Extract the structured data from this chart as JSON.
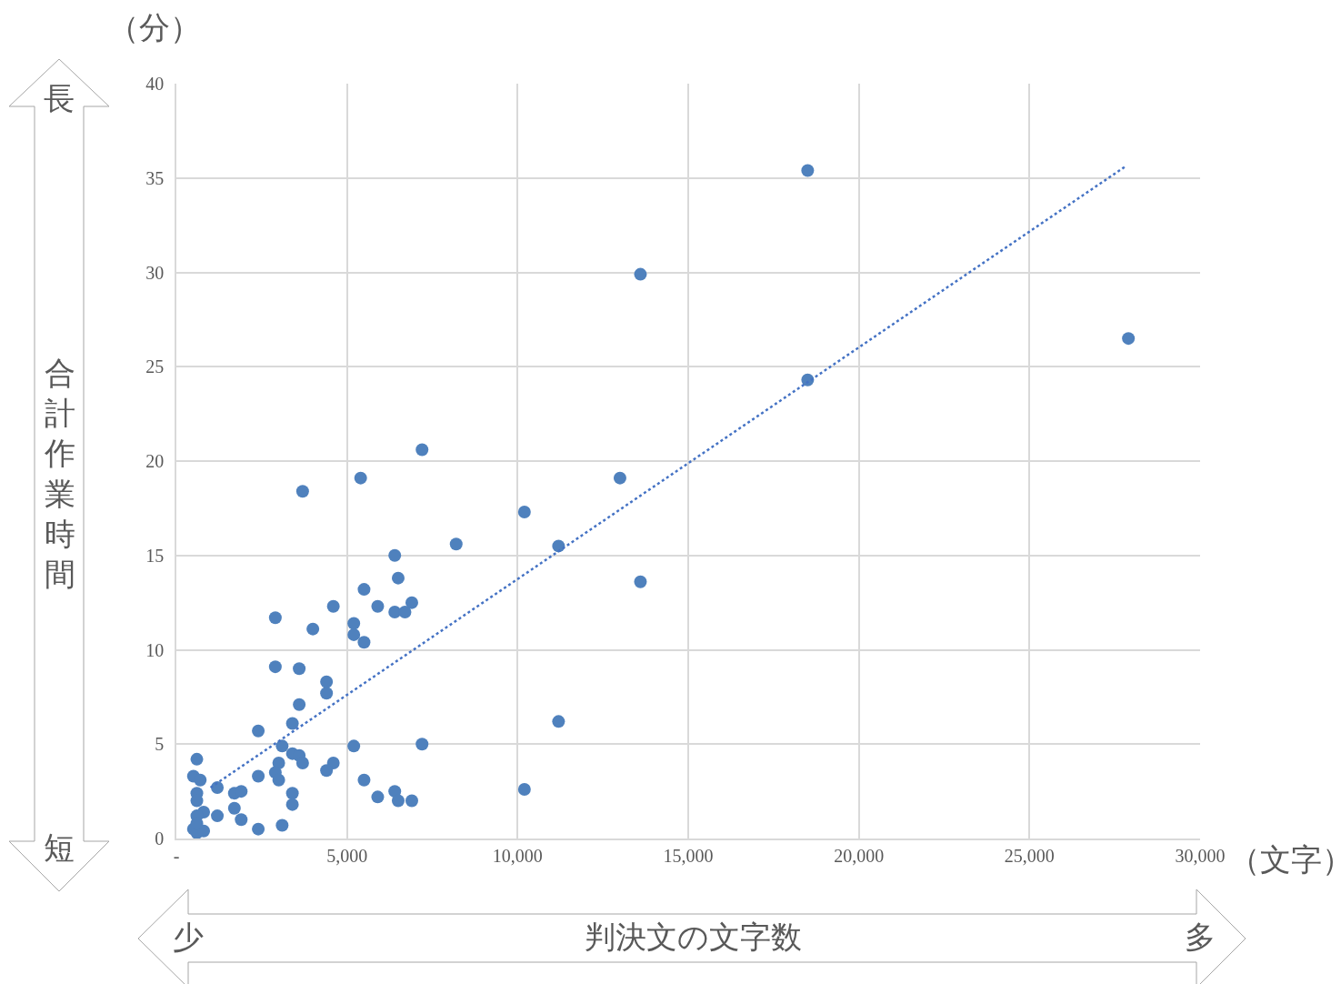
{
  "chart_data": {
    "type": "scatter",
    "xlabel": "判決文の文字数",
    "ylabel": "合計作業時間",
    "annotations": [
      "（分）",
      "（文字）",
      "長",
      "短",
      "少",
      "多"
    ],
    "xlim": [
      0,
      30000
    ],
    "xticks": [
      {
        "value": 0,
        "label": "-"
      },
      {
        "value": 5000,
        "label": "5,000"
      },
      {
        "value": 10000,
        "label": "10,000"
      },
      {
        "value": 15000,
        "label": "15,000"
      },
      {
        "value": 20000,
        "label": "20,000"
      },
      {
        "value": 25000,
        "label": "25,000"
      },
      {
        "value": 30000,
        "label": "30,000"
      }
    ],
    "ylim": [
      0,
      40
    ],
    "yticks": [
      0,
      5,
      10,
      15,
      20,
      25,
      30,
      35,
      40
    ],
    "grid": true,
    "series": [
      {
        "type": "scatter",
        "color": "#4f81bd",
        "marker": "circle",
        "x": [
          18500,
          13600,
          27900,
          18500,
          7200,
          5400,
          13000,
          3700,
          10200,
          8200,
          11200,
          6400,
          13600,
          6500,
          5500,
          4600,
          5900,
          6900,
          6400,
          6700,
          2900,
          4000,
          5200,
          5200,
          5500,
          2900,
          3600,
          4400,
          4400,
          3600,
          3400,
          2400,
          11200,
          5200,
          7200,
          3100,
          3400,
          3600,
          3700,
          3000,
          4600,
          4400,
          2900,
          3000,
          2400,
          600,
          500,
          700,
          1200,
          1700,
          1900,
          600,
          600,
          3400,
          3400,
          5500,
          6400,
          5900,
          6500,
          6900,
          10200,
          1700,
          800,
          600,
          1200,
          1900,
          2400,
          3100,
          500,
          600,
          800,
          600
        ],
        "values": [
          35.4,
          29.9,
          26.5,
          24.3,
          20.6,
          19.1,
          19.1,
          18.4,
          17.3,
          15.6,
          15.5,
          15.0,
          13.6,
          13.8,
          13.2,
          12.3,
          12.3,
          12.5,
          12.0,
          12.0,
          11.7,
          11.1,
          11.4,
          10.8,
          10.4,
          9.1,
          9.0,
          8.3,
          7.7,
          7.1,
          6.1,
          5.7,
          6.2,
          4.9,
          5.0,
          4.9,
          4.5,
          4.4,
          4.0,
          4.0,
          4.0,
          3.6,
          3.5,
          3.1,
          3.3,
          4.2,
          3.3,
          3.1,
          2.7,
          2.4,
          2.5,
          2.4,
          2.0,
          2.4,
          1.8,
          3.1,
          2.5,
          2.2,
          2.0,
          2.0,
          2.6,
          1.6,
          1.4,
          1.2,
          1.2,
          1.0,
          0.5,
          0.7,
          0.5,
          0.3,
          0.4,
          0.8
        ]
      },
      {
        "type": "line",
        "color": "#4472c4",
        "line_style": "dotted",
        "marker": "none",
        "x": [
          1000,
          27800
        ],
        "values": [
          2.7,
          35.6
        ]
      }
    ]
  }
}
